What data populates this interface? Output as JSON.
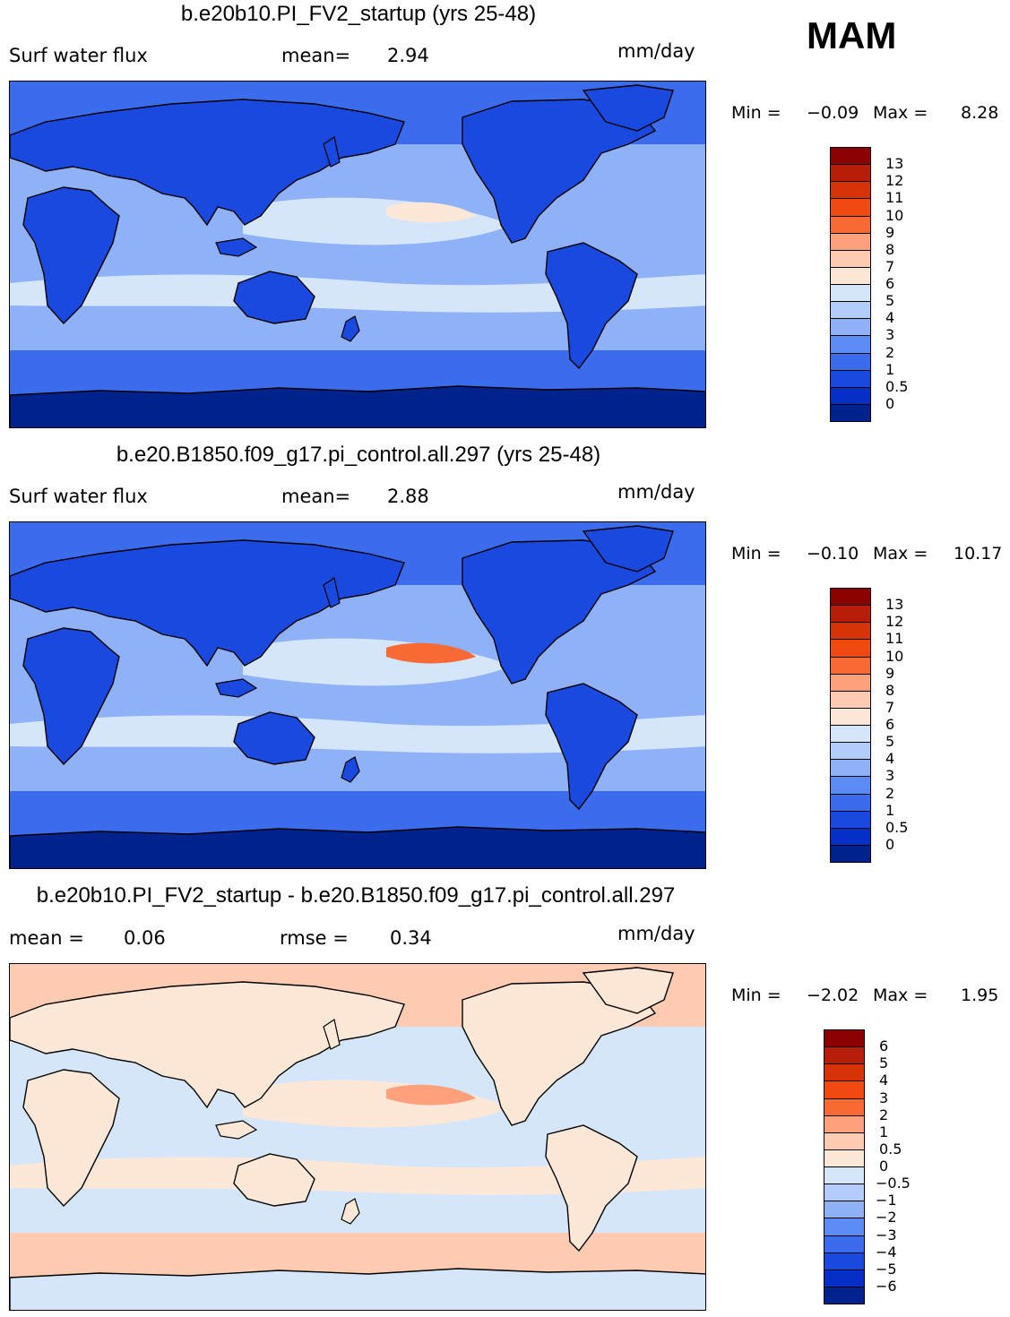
{
  "season": "MAM",
  "panels": [
    {
      "title": "b.e20b10.PI_FV2_startup (yrs 25-48)",
      "left_text": "Surf water flux",
      "stat1_label": "mean=",
      "stat1_value": "2.94",
      "stat2_label": "",
      "stat2_value": "",
      "units": "mm/day",
      "min_label": "Min =",
      "min_value": "−0.09",
      "max_label": "Max =",
      "max_value": "8.28",
      "colorbar": {
        "labels": [
          "13",
          "12",
          "11",
          "10",
          "9",
          "8",
          "7",
          "6",
          "5",
          "4",
          "3",
          "2",
          "1",
          "0.5",
          "0"
        ],
        "colors": [
          "#8b0000",
          "#b81d0a",
          "#d83208",
          "#f04a10",
          "#f86a34",
          "#fca17c",
          "#fdcbb1",
          "#fde8d8",
          "#d6e6fa",
          "#b3cdfa",
          "#8fb1f8",
          "#5c8cf3",
          "#3a6ced",
          "#1a49e0",
          "#0530c8",
          "#00228c"
        ]
      },
      "map_colors": {
        "ocean_high": "#d6e6fa",
        "ocean_mid": "#8fb1f8",
        "ocean_low": "#3a6ced",
        "land": "#1a49e0",
        "polar": "#00228c",
        "accent": "#fde8d8"
      }
    },
    {
      "title": "b.e20.B1850.f09_g17.pi_control.all.297 (yrs 25-48)",
      "left_text": "Surf water flux",
      "stat1_label": "mean=",
      "stat1_value": "2.88",
      "stat2_label": "",
      "stat2_value": "",
      "units": "mm/day",
      "min_label": "Min =",
      "min_value": "−0.10",
      "max_label": "Max =",
      "max_value": "10.17",
      "colorbar": {
        "labels": [
          "13",
          "12",
          "11",
          "10",
          "9",
          "8",
          "7",
          "6",
          "5",
          "4",
          "3",
          "2",
          "1",
          "0.5",
          "0"
        ],
        "colors": [
          "#8b0000",
          "#b81d0a",
          "#d83208",
          "#f04a10",
          "#f86a34",
          "#fca17c",
          "#fdcbb1",
          "#fde8d8",
          "#d6e6fa",
          "#b3cdfa",
          "#8fb1f8",
          "#5c8cf3",
          "#3a6ced",
          "#1a49e0",
          "#0530c8",
          "#00228c"
        ]
      },
      "map_colors": {
        "ocean_high": "#d6e6fa",
        "ocean_mid": "#8fb1f8",
        "ocean_low": "#3a6ced",
        "land": "#1a49e0",
        "polar": "#00228c",
        "accent": "#f86a34"
      }
    },
    {
      "title": "b.e20b10.PI_FV2_startup - b.e20.B1850.f09_g17.pi_control.all.297",
      "left_text": "",
      "stat1_label": "mean =",
      "stat1_value": "0.06",
      "stat2_label": "rmse =",
      "stat2_value": "0.34",
      "units": "mm/day",
      "min_label": "Min =",
      "min_value": "−2.02",
      "max_label": "Max =",
      "max_value": "1.95",
      "colorbar": {
        "labels": [
          "6",
          "5",
          "4",
          "3",
          "2",
          "1",
          "0.5",
          "0",
          "−0.5",
          "−1",
          "−2",
          "−3",
          "−4",
          "−5",
          "−6"
        ],
        "colors": [
          "#8b0000",
          "#b81d0a",
          "#d83208",
          "#f04a10",
          "#f86a34",
          "#fca17c",
          "#fdcbb1",
          "#fde8d8",
          "#d6e6fa",
          "#b3cdfa",
          "#8fb1f8",
          "#5c8cf3",
          "#3a6ced",
          "#1a49e0",
          "#0530c8",
          "#00228c"
        ]
      },
      "map_colors": {
        "ocean_high": "#fde8d8",
        "ocean_mid": "#d6e6fa",
        "ocean_low": "#fdcbb1",
        "land": "#fde8d8",
        "polar": "#d6e6fa",
        "accent": "#fca17c"
      }
    }
  ]
}
